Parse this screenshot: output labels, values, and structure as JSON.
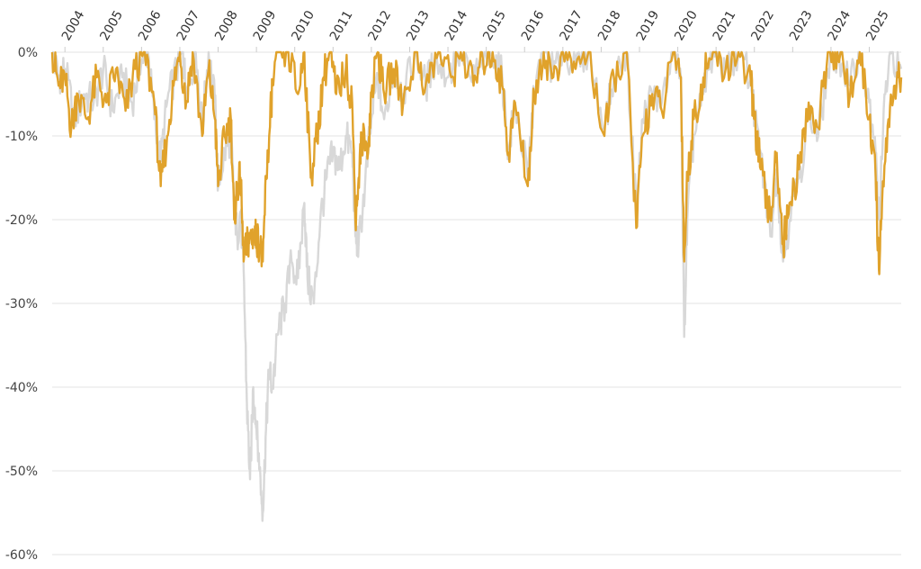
{
  "chart_data": {
    "type": "line",
    "title": "",
    "xlabel": "",
    "ylabel": "",
    "x_range": [
      "2003-09",
      "2025-11"
    ],
    "ylim": [
      -60,
      0
    ],
    "y_ticks": [
      0,
      -10,
      -20,
      -30,
      -40,
      -50,
      -60
    ],
    "y_tick_labels": [
      "0%",
      "-10%",
      "-20%",
      "-30%",
      "-40%",
      "-50%",
      "-60%"
    ],
    "x_ticks": [
      "2004",
      "2005",
      "2006",
      "2007",
      "2008",
      "2009",
      "2010",
      "2011",
      "2012",
      "2013",
      "2014",
      "2015",
      "2016",
      "2017",
      "2018",
      "2019",
      "2020",
      "2021",
      "2022",
      "2023",
      "2024",
      "2025"
    ],
    "grid": "horizontal",
    "legend": "none",
    "series": [
      {
        "color": "#d8d8d8",
        "points": [
          [
            "2003-09",
            0
          ],
          [
            "2003-11",
            -3
          ],
          [
            "2004-01",
            -2
          ],
          [
            "2004-04",
            -8
          ],
          [
            "2004-07",
            -5
          ],
          [
            "2004-10",
            -6
          ],
          [
            "2005-01",
            -2
          ],
          [
            "2005-04",
            -7
          ],
          [
            "2005-07",
            -3
          ],
          [
            "2005-10",
            -6
          ],
          [
            "2006-01",
            -1
          ],
          [
            "2006-03",
            0
          ],
          [
            "2006-05",
            -8
          ],
          [
            "2006-07",
            -13
          ],
          [
            "2006-09",
            -6
          ],
          [
            "2006-12",
            -2
          ],
          [
            "2007-02",
            0
          ],
          [
            "2007-03",
            -5
          ],
          [
            "2007-06",
            0
          ],
          [
            "2007-08",
            -9
          ],
          [
            "2007-10",
            0
          ],
          [
            "2007-12",
            -6
          ],
          [
            "2008-01",
            -16
          ],
          [
            "2008-03",
            -12
          ],
          [
            "2008-05",
            -10
          ],
          [
            "2008-06",
            -18
          ],
          [
            "2008-07",
            -22
          ],
          [
            "2008-08",
            -19
          ],
          [
            "2008-09",
            -26
          ],
          [
            "2008-10",
            -42
          ],
          [
            "2008-11",
            -51
          ],
          [
            "2008-12",
            -40
          ],
          [
            "2009-01",
            -45
          ],
          [
            "2009-02",
            -50
          ],
          [
            "2009-03",
            -55
          ],
          [
            "2009-04",
            -45
          ],
          [
            "2009-05",
            -38
          ],
          [
            "2009-06",
            -40
          ],
          [
            "2009-08",
            -33
          ],
          [
            "2009-10",
            -30
          ],
          [
            "2009-12",
            -25
          ],
          [
            "2010-02",
            -27
          ],
          [
            "2010-04",
            -18
          ],
          [
            "2010-05",
            -27
          ],
          [
            "2010-07",
            -30
          ],
          [
            "2010-09",
            -20
          ],
          [
            "2010-11",
            -15
          ],
          [
            "2011-01",
            -12
          ],
          [
            "2011-03",
            -14
          ],
          [
            "2011-05",
            -10
          ],
          [
            "2011-07",
            -12
          ],
          [
            "2011-08",
            -22
          ],
          [
            "2011-09",
            -23
          ],
          [
            "2011-11",
            -16
          ],
          [
            "2012-01",
            -8
          ],
          [
            "2012-03",
            -3
          ],
          [
            "2012-05",
            -8
          ],
          [
            "2012-08",
            -2
          ],
          [
            "2012-11",
            -5
          ],
          [
            "2013-03",
            0
          ],
          [
            "2013-06",
            -4
          ],
          [
            "2013-09",
            -1
          ],
          [
            "2014-01",
            -3
          ],
          [
            "2014-04",
            0
          ],
          [
            "2014-08",
            -3
          ],
          [
            "2014-12",
            -2
          ],
          [
            "2015-03",
            0
          ],
          [
            "2015-06",
            -3
          ],
          [
            "2015-08",
            -12
          ],
          [
            "2015-10",
            -6
          ],
          [
            "2016-02",
            -15
          ],
          [
            "2016-04",
            -5
          ],
          [
            "2016-07",
            0
          ],
          [
            "2016-10",
            -2
          ],
          [
            "2017-01",
            0
          ],
          [
            "2017-05",
            -1
          ],
          [
            "2017-09",
            0
          ],
          [
            "2018-02",
            -9
          ],
          [
            "2018-05",
            -3
          ],
          [
            "2018-09",
            0
          ],
          [
            "2018-12",
            -19
          ],
          [
            "2019-02",
            -8
          ],
          [
            "2019-05",
            -5
          ],
          [
            "2019-08",
            -6
          ],
          [
            "2019-12",
            0
          ],
          [
            "2020-02",
            -3
          ],
          [
            "2020-03",
            -34
          ],
          [
            "2020-04",
            -20
          ],
          [
            "2020-06",
            -10
          ],
          [
            "2020-09",
            -5
          ],
          [
            "2020-12",
            0
          ],
          [
            "2021-04",
            -2
          ],
          [
            "2021-08",
            0
          ],
          [
            "2021-12",
            -3
          ],
          [
            "2022-01",
            -8
          ],
          [
            "2022-03",
            -12
          ],
          [
            "2022-06",
            -22
          ],
          [
            "2022-08",
            -14
          ],
          [
            "2022-10",
            -25
          ],
          [
            "2022-12",
            -20
          ],
          [
            "2023-03",
            -15
          ],
          [
            "2023-06",
            -8
          ],
          [
            "2023-09",
            -10
          ],
          [
            "2023-12",
            -2
          ],
          [
            "2024-03",
            0
          ],
          [
            "2024-07",
            -4
          ],
          [
            "2024-10",
            0
          ],
          [
            "2025-01",
            -6
          ],
          [
            "2025-03",
            -12
          ],
          [
            "2025-04",
            -20
          ],
          [
            "2025-06",
            -5
          ],
          [
            "2025-08",
            0
          ],
          [
            "2025-11",
            -2
          ]
        ]
      },
      {
        "color": "#e0a22b",
        "points": [
          [
            "2003-09",
            0
          ],
          [
            "2003-11",
            -4
          ],
          [
            "2004-01",
            -3
          ],
          [
            "2004-03",
            -9
          ],
          [
            "2004-05",
            -5
          ],
          [
            "2004-08",
            -8
          ],
          [
            "2004-11",
            -3
          ],
          [
            "2005-02",
            -6
          ],
          [
            "2005-05",
            -2
          ],
          [
            "2005-08",
            -7
          ],
          [
            "2005-11",
            -2
          ],
          [
            "2006-02",
            0
          ],
          [
            "2006-05",
            -6
          ],
          [
            "2006-07",
            -16
          ],
          [
            "2006-09",
            -10
          ],
          [
            "2006-11",
            -4
          ],
          [
            "2007-01",
            0
          ],
          [
            "2007-03",
            -6
          ],
          [
            "2007-05",
            0
          ],
          [
            "2007-08",
            -10
          ],
          [
            "2007-10",
            -2
          ],
          [
            "2007-12",
            -8
          ],
          [
            "2008-01",
            -16
          ],
          [
            "2008-03",
            -10
          ],
          [
            "2008-05",
            -8
          ],
          [
            "2008-06",
            -20
          ],
          [
            "2008-07",
            -16
          ],
          [
            "2008-08",
            -15
          ],
          [
            "2008-09",
            -25
          ],
          [
            "2008-10",
            -23
          ],
          [
            "2008-11",
            -22
          ],
          [
            "2008-12",
            -22
          ],
          [
            "2009-01",
            -22
          ],
          [
            "2009-02",
            -23
          ],
          [
            "2009-03",
            -25
          ],
          [
            "2009-04",
            -15
          ],
          [
            "2009-05",
            -10
          ],
          [
            "2009-06",
            -4
          ],
          [
            "2009-08",
            0
          ],
          [
            "2009-11",
            0
          ],
          [
            "2010-02",
            -5
          ],
          [
            "2010-04",
            0
          ],
          [
            "2010-06",
            -15
          ],
          [
            "2010-08",
            -10
          ],
          [
            "2010-10",
            -3
          ],
          [
            "2010-12",
            0
          ],
          [
            "2011-02",
            -5
          ],
          [
            "2011-05",
            -2
          ],
          [
            "2011-07",
            -6
          ],
          [
            "2011-08",
            -20
          ],
          [
            "2011-09",
            -15
          ],
          [
            "2011-10",
            -10
          ],
          [
            "2011-12",
            -12
          ],
          [
            "2012-01",
            -5
          ],
          [
            "2012-03",
            0
          ],
          [
            "2012-05",
            -5
          ],
          [
            "2012-08",
            -2
          ],
          [
            "2012-11",
            -6
          ],
          [
            "2013-03",
            0
          ],
          [
            "2013-06",
            -4
          ],
          [
            "2013-10",
            0
          ],
          [
            "2014-02",
            -3
          ],
          [
            "2014-05",
            0
          ],
          [
            "2014-09",
            -4
          ],
          [
            "2014-12",
            -1
          ],
          [
            "2015-03",
            0
          ],
          [
            "2015-06",
            -4
          ],
          [
            "2015-08",
            -12
          ],
          [
            "2015-10",
            -6
          ],
          [
            "2016-02",
            -16
          ],
          [
            "2016-04",
            -5
          ],
          [
            "2016-07",
            0
          ],
          [
            "2016-10",
            -3
          ],
          [
            "2017-01",
            0
          ],
          [
            "2017-05",
            -2
          ],
          [
            "2017-09",
            0
          ],
          [
            "2018-02",
            -10
          ],
          [
            "2018-05",
            -3
          ],
          [
            "2018-09",
            0
          ],
          [
            "2018-12",
            -21
          ],
          [
            "2019-02",
            -10
          ],
          [
            "2019-05",
            -5
          ],
          [
            "2019-08",
            -7
          ],
          [
            "2019-12",
            0
          ],
          [
            "2020-02",
            -3
          ],
          [
            "2020-03",
            -25
          ],
          [
            "2020-04",
            -15
          ],
          [
            "2020-06",
            -8
          ],
          [
            "2020-09",
            -3
          ],
          [
            "2020-12",
            0
          ],
          [
            "2021-04",
            -2
          ],
          [
            "2021-08",
            0
          ],
          [
            "2021-12",
            -4
          ],
          [
            "2022-01",
            -8
          ],
          [
            "2022-03",
            -14
          ],
          [
            "2022-06",
            -20
          ],
          [
            "2022-08",
            -12
          ],
          [
            "2022-10",
            -23
          ],
          [
            "2022-12",
            -18
          ],
          [
            "2023-03",
            -14
          ],
          [
            "2023-06",
            -6
          ],
          [
            "2023-09",
            -9
          ],
          [
            "2023-12",
            0
          ],
          [
            "2024-03",
            0
          ],
          [
            "2024-07",
            -5
          ],
          [
            "2024-10",
            0
          ],
          [
            "2025-01",
            -8
          ],
          [
            "2025-03",
            -15
          ],
          [
            "2025-04",
            -26
          ],
          [
            "2025-05",
            -18
          ],
          [
            "2025-07",
            -8
          ],
          [
            "2025-09",
            -4
          ],
          [
            "2025-11",
            -3
          ]
        ]
      }
    ]
  }
}
